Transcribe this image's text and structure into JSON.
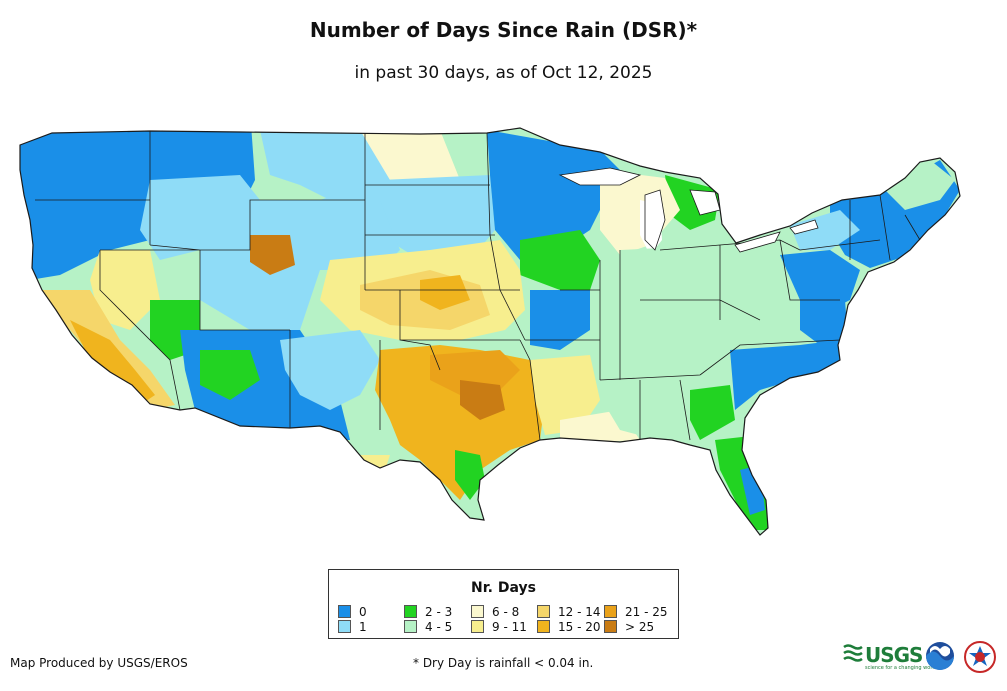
{
  "title": "Number of Days Since Rain (DSR)*",
  "subtitle": "in past 30 days, as of Oct 12, 2025",
  "legend": {
    "title": "Nr. Days",
    "items": [
      {
        "label": "0",
        "color": "#1a8fe8"
      },
      {
        "label": "1",
        "color": "#8fdcf7"
      },
      {
        "label": "2 - 3",
        "color": "#22d322"
      },
      {
        "label": "4 - 5",
        "color": "#b6f2c6"
      },
      {
        "label": "6 - 8",
        "color": "#fbf8cf"
      },
      {
        "label": "9 - 11",
        "color": "#f7ee8e"
      },
      {
        "label": "12 - 14",
        "color": "#f5d66a"
      },
      {
        "label": "15 - 20",
        "color": "#f0b41e"
      },
      {
        "label": "21 - 25",
        "color": "#eaa21a"
      },
      {
        "label": "> 25",
        "color": "#c97c14"
      }
    ]
  },
  "credit": "Map Produced by USGS/EROS",
  "footnote": "* Dry Day is rainfall < 0.04 in.",
  "logos": {
    "usgs": "USGS",
    "usgs_tagline": "science for a changing world",
    "noaa": "noaa-logo-icon",
    "nws": "nws-logo-icon"
  }
}
